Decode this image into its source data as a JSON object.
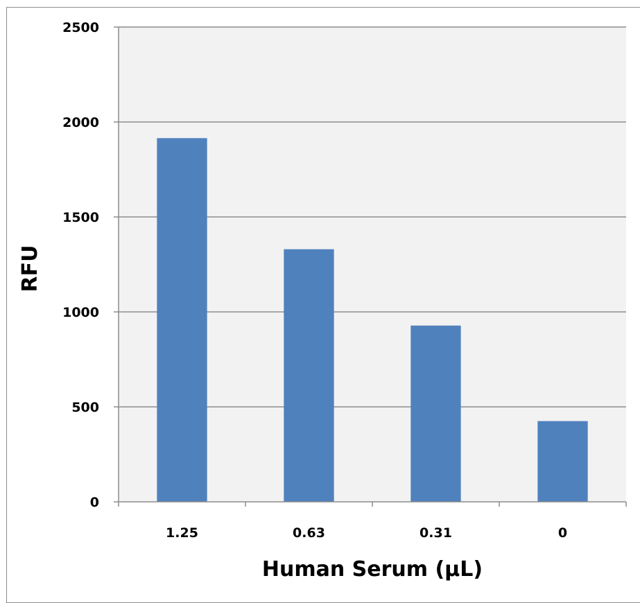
{
  "chart_data": {
    "type": "bar",
    "title": "",
    "xlabel": "Human Serum (µL)",
    "ylabel": "RFU",
    "categories": [
      "1.25",
      "0.63",
      "0.31",
      "0"
    ],
    "series": [
      {
        "values": [
          1915,
          1330,
          928,
          425
        ]
      }
    ],
    "ylim": [
      0,
      2500
    ],
    "yticks": [
      0,
      500,
      1000,
      1500,
      2000,
      2500
    ],
    "grid": true,
    "legend": "none",
    "colors": {
      "bar": "#4f81bd",
      "grid": "#8c8c8c",
      "plot_background": "#f2f2f2",
      "axis": "#8c8c8c",
      "border": "#8c8c8c"
    }
  }
}
